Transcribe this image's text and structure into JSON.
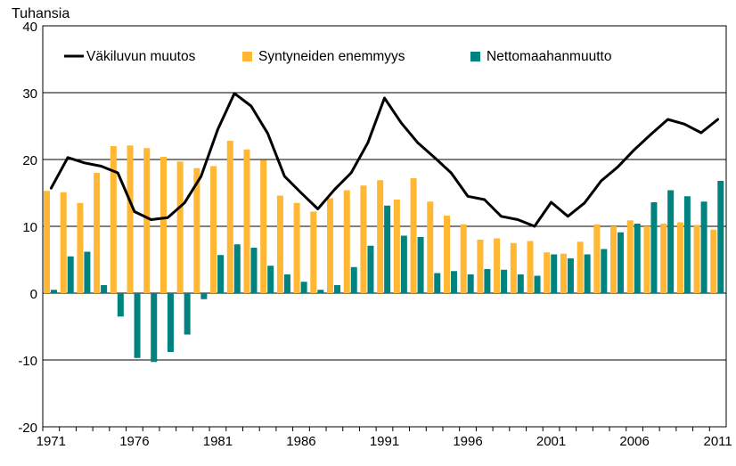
{
  "chart_data": {
    "type": "bar",
    "title": "",
    "ylabel": "Tuhansia",
    "xlabel": "",
    "ylim": [
      -20,
      40
    ],
    "yticks": [
      -20,
      -10,
      0,
      10,
      20,
      30,
      40
    ],
    "years": [
      1971,
      1972,
      1973,
      1974,
      1975,
      1976,
      1977,
      1978,
      1979,
      1980,
      1981,
      1982,
      1983,
      1984,
      1985,
      1986,
      1987,
      1988,
      1989,
      1990,
      1991,
      1992,
      1993,
      1994,
      1995,
      1996,
      1997,
      1998,
      1999,
      2000,
      2001,
      2002,
      2003,
      2004,
      2005,
      2006,
      2007,
      2008,
      2009,
      2010,
      2011
    ],
    "xtick_labels": [
      "1971",
      "1976",
      "1981",
      "1986",
      "1991",
      "1996",
      "2001",
      "2006",
      "2011"
    ],
    "xtick_years": [
      1971,
      1976,
      1981,
      1986,
      1991,
      1996,
      2001,
      2006,
      2011
    ],
    "series": [
      {
        "name": "Väkiluvun muutos",
        "kind": "line",
        "color": "#000000",
        "values": [
          15.7,
          20.3,
          19.5,
          19.0,
          18.0,
          12.2,
          11.0,
          11.3,
          13.5,
          17.5,
          24.5,
          29.9,
          28.0,
          23.9,
          17.5,
          15.0,
          12.6,
          15.5,
          18.0,
          22.5,
          29.2,
          25.5,
          22.5,
          20.3,
          18.0,
          14.5,
          14.0,
          11.5,
          11.0,
          10.0,
          13.6,
          11.5,
          13.5,
          16.8,
          18.9,
          21.5,
          23.8,
          26.0,
          25.3,
          24.0,
          26.0
        ]
      },
      {
        "name": "Syntyneiden enemmyys",
        "kind": "bar",
        "color": "#FFB734",
        "values": [
          15.3,
          15.1,
          13.5,
          18.0,
          22.0,
          22.1,
          21.7,
          20.4,
          19.7,
          18.7,
          19.0,
          22.8,
          21.5,
          19.9,
          14.6,
          13.5,
          12.2,
          14.2,
          15.4,
          16.1,
          16.9,
          14.0,
          17.2,
          13.7,
          11.6,
          10.3,
          8.0,
          8.2,
          7.5,
          7.8,
          6.1,
          5.9,
          7.7,
          10.3,
          10.0,
          10.9,
          10.0,
          10.4,
          10.6,
          10.2,
          9.5
        ]
      },
      {
        "name": "Nettomaahanmuutto",
        "kind": "bar",
        "color": "#00837F",
        "values": [
          0.5,
          5.5,
          6.2,
          1.2,
          -3.5,
          -9.7,
          -10.3,
          -8.8,
          -6.2,
          -0.9,
          5.7,
          7.3,
          6.8,
          4.1,
          2.8,
          1.7,
          0.5,
          1.2,
          3.9,
          7.1,
          13.1,
          8.6,
          8.4,
          3.0,
          3.3,
          2.8,
          3.6,
          3.5,
          2.8,
          2.6,
          5.8,
          5.2,
          5.8,
          6.6,
          9.1,
          10.4,
          13.6,
          15.4,
          14.5,
          13.7,
          16.8
        ]
      }
    ]
  }
}
